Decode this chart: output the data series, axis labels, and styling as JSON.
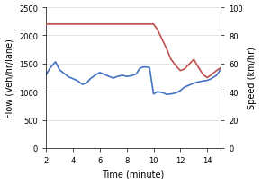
{
  "flow_time": [
    2,
    2.3,
    2.7,
    3.0,
    3.3,
    3.7,
    4.0,
    4.3,
    4.7,
    5.0,
    5.3,
    5.7,
    6.0,
    6.3,
    6.7,
    7.0,
    7.3,
    7.7,
    8.0,
    8.3,
    8.7,
    9.0,
    9.3,
    9.7,
    10.0,
    10.3,
    10.7,
    11.0,
    11.3,
    11.7,
    12.0,
    12.3,
    12.7,
    13.0,
    13.3,
    13.7,
    14.0,
    14.3,
    14.7,
    15.0
  ],
  "flow_values": [
    1300,
    1420,
    1530,
    1390,
    1330,
    1260,
    1230,
    1200,
    1130,
    1150,
    1230,
    1300,
    1340,
    1310,
    1270,
    1240,
    1270,
    1290,
    1270,
    1280,
    1310,
    1420,
    1440,
    1430,
    960,
    1000,
    980,
    950,
    960,
    980,
    1020,
    1080,
    1120,
    1150,
    1170,
    1190,
    1200,
    1230,
    1290,
    1400
  ],
  "speed_time": [
    2,
    2.5,
    3.0,
    3.5,
    4.0,
    4.5,
    5.0,
    5.5,
    6.0,
    6.5,
    7.0,
    7.5,
    8.0,
    8.5,
    9.0,
    9.5,
    10.0,
    10.3,
    10.7,
    11.0,
    11.3,
    11.7,
    12.0,
    12.3,
    12.7,
    13.0,
    13.3,
    13.7,
    14.0,
    14.3,
    14.7,
    15.0
  ],
  "speed_values": [
    88,
    88,
    88,
    88,
    88,
    88,
    88,
    88,
    88,
    88,
    88,
    88,
    88,
    88,
    88,
    88,
    88,
    84,
    76,
    70,
    63,
    58,
    55,
    56,
    60,
    63,
    58,
    52,
    50,
    52,
    55,
    57
  ],
  "flow_color": "#4472c4",
  "speed_color": "#c0504d",
  "xlabel": "Time (minute)",
  "ylabel_left": "Flow (Veh/hr/lane)",
  "ylabel_right": "Speed (km/hr)",
  "xlim": [
    2,
    15
  ],
  "ylim_left": [
    0,
    2500
  ],
  "ylim_right": [
    0,
    100
  ],
  "xticks": [
    2,
    4,
    6,
    8,
    10,
    12,
    14
  ],
  "yticks_left": [
    0,
    500,
    1000,
    1500,
    2000,
    2500
  ],
  "yticks_right": [
    0,
    20,
    40,
    60,
    80,
    100
  ],
  "linewidth": 1.2,
  "figsize": [
    2.91,
    2.05
  ],
  "dpi": 100,
  "tick_labelsize": 6,
  "axis_labelsize": 7,
  "bg_color": "#f2f2f2"
}
